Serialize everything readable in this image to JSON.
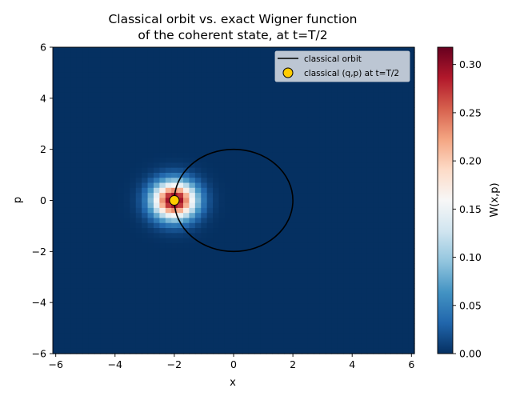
{
  "chart_data": {
    "type": "heatmap",
    "title_line1": "Classical orbit vs. exact Wigner function",
    "title_line2": "of the coherent state, at t=T/2",
    "xlabel": "x",
    "ylabel": "p",
    "xlim": [
      -6.1,
      6.1
    ],
    "ylim": [
      -6,
      6
    ],
    "xticks": [
      -6,
      -4,
      -2,
      0,
      2,
      4,
      6
    ],
    "yticks": [
      -6,
      -4,
      -2,
      0,
      2,
      4,
      6
    ],
    "x_tick_labels": [
      "−6",
      "−4",
      "−2",
      "0",
      "2",
      "4",
      "6"
    ],
    "y_tick_labels": [
      "−6",
      "−4",
      "−2",
      "0",
      "2",
      "4",
      "6"
    ],
    "grid": false,
    "wigner": {
      "function": "gaussian",
      "center": [
        -2,
        0
      ],
      "peak": 0.318,
      "width_sigma": 0.5,
      "grid_cells": 61
    },
    "classical_orbit": {
      "shape": "circle",
      "center": [
        0,
        0
      ],
      "radius": 2,
      "color": "#000000"
    },
    "classical_point": {
      "q": -2,
      "p": 0,
      "color": "#ffcc00"
    },
    "legend": {
      "placement": "top-right",
      "entries": [
        "classical orbit",
        "classical (q,p) at t=T/2"
      ]
    },
    "colorbar": {
      "label": "W(x,p)",
      "min": 0,
      "max": 0.318,
      "ticks": [
        0.0,
        0.05,
        0.1,
        0.15,
        0.2,
        0.25,
        0.3
      ],
      "tick_labels": [
        "0.00",
        "0.05",
        "0.10",
        "0.15",
        "0.20",
        "0.25",
        "0.30"
      ],
      "colormap": "RdBu_r",
      "colormap_stops": [
        "#053061",
        "#2166ac",
        "#4393c3",
        "#92c5de",
        "#d1e5f0",
        "#f7f7f7",
        "#fddbc7",
        "#f4a582",
        "#d6604d",
        "#b2182b",
        "#67001f"
      ]
    }
  }
}
